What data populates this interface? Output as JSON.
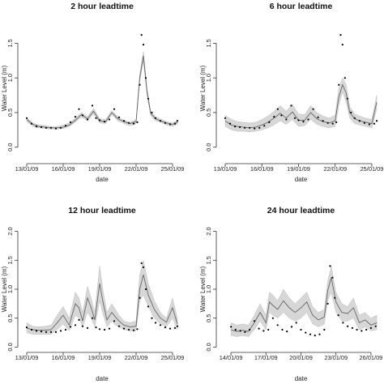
{
  "chart_data": [
    {
      "type": "line",
      "title": "2 hour leadtime",
      "xlabel": "date",
      "ylabel": "Water Level (m)",
      "x_tick_labels": [
        "13/01/09",
        "16/01/09",
        "19/01/09",
        "22/01/09",
        "25/01/09"
      ],
      "x_tick_day": [
        13,
        16,
        19,
        22,
        25
      ],
      "x_range": [
        12.8,
        25.6
      ],
      "ylim": [
        -0.05,
        1.75
      ],
      "y_ticks": [
        "0.0",
        "0.5",
        "1.0",
        "1.5"
      ],
      "series": [
        {
          "style": "band",
          "x": [
            13,
            13.5,
            14,
            14.5,
            15,
            15.5,
            16,
            16.5,
            17,
            17.5,
            18,
            18.5,
            19,
            19.5,
            20,
            20.5,
            21,
            21.5,
            22,
            22.3,
            22.6,
            22.9,
            23.2,
            23.6,
            24,
            24.5,
            25,
            25.4
          ],
          "lower": [
            0.37,
            0.3,
            0.28,
            0.27,
            0.26,
            0.26,
            0.27,
            0.3,
            0.36,
            0.44,
            0.38,
            0.48,
            0.35,
            0.34,
            0.47,
            0.38,
            0.34,
            0.31,
            0.34,
            0.95,
            1.25,
            0.75,
            0.46,
            0.38,
            0.36,
            0.32,
            0.3,
            0.33
          ],
          "upper": [
            0.43,
            0.35,
            0.32,
            0.31,
            0.3,
            0.3,
            0.32,
            0.35,
            0.42,
            0.5,
            0.44,
            0.56,
            0.41,
            0.4,
            0.53,
            0.44,
            0.39,
            0.36,
            0.4,
            1.05,
            1.38,
            0.85,
            0.52,
            0.44,
            0.41,
            0.37,
            0.35,
            0.39
          ]
        },
        {
          "style": "line",
          "x": [
            13,
            13.5,
            14,
            14.5,
            15,
            15.5,
            16,
            16.5,
            17,
            17.5,
            18,
            18.5,
            19,
            19.5,
            20,
            20.5,
            21,
            21.5,
            22,
            22.3,
            22.6,
            22.9,
            23.2,
            23.6,
            24,
            24.5,
            25,
            25.4
          ],
          "values": [
            0.4,
            0.33,
            0.3,
            0.29,
            0.28,
            0.28,
            0.29,
            0.32,
            0.39,
            0.47,
            0.41,
            0.52,
            0.38,
            0.37,
            0.5,
            0.41,
            0.37,
            0.34,
            0.37,
            1.0,
            1.32,
            0.8,
            0.49,
            0.41,
            0.38,
            0.35,
            0.33,
            0.36
          ]
        },
        {
          "style": "points",
          "x": [
            13,
            13.4,
            13.8,
            14.2,
            14.6,
            15,
            15.4,
            15.8,
            16.2,
            16.6,
            17,
            17.3,
            17.6,
            18,
            18.4,
            18.7,
            19,
            19.4,
            19.8,
            20.2,
            20.6,
            21,
            21.4,
            21.8,
            22.1,
            22.3,
            22.45,
            22.6,
            22.8,
            23,
            23.3,
            23.6,
            24,
            24.4,
            24.8,
            25.2,
            25.4
          ],
          "values": [
            0.42,
            0.34,
            0.3,
            0.29,
            0.28,
            0.28,
            0.27,
            0.28,
            0.31,
            0.36,
            0.44,
            0.55,
            0.46,
            0.4,
            0.6,
            0.42,
            0.39,
            0.37,
            0.4,
            0.55,
            0.43,
            0.38,
            0.35,
            0.34,
            0.36,
            0.9,
            1.62,
            1.48,
            1.0,
            0.7,
            0.5,
            0.42,
            0.38,
            0.35,
            0.33,
            0.34,
            0.38
          ]
        }
      ]
    },
    {
      "type": "line",
      "title": "6 hour leadtime",
      "xlabel": "date",
      "ylabel": "Water Level (m)",
      "x_tick_labels": [
        "13/01/09",
        "16/01/09",
        "19/01/09",
        "22/01/09",
        "25/01/09"
      ],
      "x_tick_day": [
        13,
        16,
        19,
        22,
        25
      ],
      "x_range": [
        12.8,
        25.6
      ],
      "ylim": [
        -0.05,
        1.75
      ],
      "y_ticks": [
        "0.0",
        "0.5",
        "1.0",
        "1.5"
      ],
      "series": [
        {
          "style": "band",
          "x": [
            13,
            13.5,
            14,
            14.5,
            15,
            15.5,
            16,
            16.5,
            17,
            17.5,
            18,
            18.5,
            19,
            19.5,
            20,
            20.5,
            21,
            21.5,
            22,
            22.3,
            22.6,
            22.9,
            23.2,
            23.6,
            24,
            24.5,
            25,
            25.4
          ],
          "lower": [
            0.3,
            0.25,
            0.23,
            0.23,
            0.22,
            0.23,
            0.25,
            0.28,
            0.32,
            0.38,
            0.33,
            0.4,
            0.3,
            0.31,
            0.4,
            0.33,
            0.3,
            0.28,
            0.3,
            0.6,
            0.8,
            0.65,
            0.42,
            0.34,
            0.32,
            0.3,
            0.28,
            0.55
          ],
          "upper": [
            0.46,
            0.4,
            0.37,
            0.36,
            0.35,
            0.36,
            0.4,
            0.45,
            0.52,
            0.6,
            0.52,
            0.62,
            0.48,
            0.47,
            0.6,
            0.5,
            0.45,
            0.42,
            0.46,
            0.85,
            1.0,
            0.9,
            0.58,
            0.48,
            0.45,
            0.42,
            0.4,
            0.75
          ]
        },
        {
          "style": "line",
          "x": [
            13,
            13.5,
            14,
            14.5,
            15,
            15.5,
            16,
            16.5,
            17,
            17.5,
            18,
            18.5,
            19,
            19.5,
            20,
            20.5,
            21,
            21.5,
            22,
            22.3,
            22.6,
            22.9,
            23.2,
            23.6,
            24,
            24.5,
            25,
            25.4
          ],
          "values": [
            0.38,
            0.32,
            0.3,
            0.29,
            0.28,
            0.29,
            0.32,
            0.36,
            0.42,
            0.49,
            0.42,
            0.51,
            0.39,
            0.39,
            0.5,
            0.41,
            0.37,
            0.35,
            0.38,
            0.72,
            0.9,
            0.78,
            0.5,
            0.41,
            0.38,
            0.36,
            0.34,
            0.65
          ]
        },
        {
          "style": "points",
          "x": [
            13,
            13.4,
            13.8,
            14.2,
            14.6,
            15,
            15.4,
            15.8,
            16.2,
            16.6,
            17,
            17.3,
            17.6,
            18,
            18.4,
            18.7,
            19,
            19.4,
            19.8,
            20.2,
            20.6,
            21,
            21.4,
            21.8,
            22.1,
            22.3,
            22.45,
            22.6,
            22.8,
            23,
            23.3,
            23.6,
            24,
            24.4,
            24.8,
            25.2,
            25.4
          ],
          "values": [
            0.42,
            0.34,
            0.3,
            0.29,
            0.28,
            0.28,
            0.27,
            0.28,
            0.31,
            0.36,
            0.44,
            0.55,
            0.46,
            0.4,
            0.6,
            0.42,
            0.39,
            0.37,
            0.4,
            0.55,
            0.43,
            0.38,
            0.35,
            0.34,
            0.36,
            0.9,
            1.62,
            1.48,
            1.0,
            0.7,
            0.5,
            0.42,
            0.38,
            0.35,
            0.33,
            0.34,
            0.38
          ]
        }
      ]
    },
    {
      "type": "line",
      "title": "12 hour leadtime",
      "xlabel": "date",
      "ylabel": "Water Level (m)",
      "x_tick_labels": [
        "13/01/09",
        "16/01/09",
        "19/01/09",
        "22/01/09",
        "25/01/09"
      ],
      "x_tick_day": [
        13,
        16,
        19,
        22,
        25
      ],
      "x_range": [
        12.8,
        25.6
      ],
      "ylim": [
        -0.05,
        2.05
      ],
      "y_ticks": [
        "0.0",
        "0.5",
        "1.0",
        "1.5",
        "2.0"
      ],
      "series": [
        {
          "style": "band",
          "x": [
            13,
            13.5,
            14,
            14.5,
            15,
            15.5,
            16,
            16.5,
            17,
            17.3,
            17.6,
            18,
            18.3,
            18.6,
            19,
            19.3,
            19.6,
            20,
            20.3,
            20.6,
            21,
            21.5,
            22,
            22.3,
            22.6,
            23,
            23.5,
            24,
            24.5,
            25,
            25.4
          ],
          "lower": [
            0.25,
            0.22,
            0.22,
            0.22,
            0.22,
            0.3,
            0.4,
            0.28,
            0.55,
            0.5,
            0.35,
            0.6,
            0.5,
            0.35,
            0.8,
            0.55,
            0.35,
            0.45,
            0.38,
            0.35,
            0.3,
            0.28,
            0.28,
            0.8,
            0.9,
            0.7,
            0.5,
            0.4,
            0.35,
            0.5,
            0.3
          ],
          "upper": [
            0.42,
            0.36,
            0.35,
            0.36,
            0.38,
            0.55,
            0.7,
            0.5,
            0.95,
            0.85,
            0.6,
            1.05,
            0.85,
            0.6,
            1.4,
            0.95,
            0.6,
            0.75,
            0.65,
            0.55,
            0.45,
            0.42,
            0.45,
            1.25,
            1.5,
            1.1,
            0.8,
            0.6,
            0.5,
            0.85,
            0.5
          ]
        },
        {
          "style": "line",
          "x": [
            13,
            13.5,
            14,
            14.5,
            15,
            15.5,
            16,
            16.5,
            17,
            17.3,
            17.6,
            18,
            18.3,
            18.6,
            19,
            19.3,
            19.6,
            20,
            20.3,
            20.6,
            21,
            21.5,
            22,
            22.3,
            22.6,
            23,
            23.5,
            24,
            24.5,
            25,
            25.4
          ],
          "values": [
            0.33,
            0.3,
            0.29,
            0.29,
            0.3,
            0.42,
            0.55,
            0.38,
            0.75,
            0.68,
            0.45,
            0.85,
            0.68,
            0.47,
            1.1,
            0.75,
            0.47,
            0.6,
            0.52,
            0.45,
            0.38,
            0.35,
            0.36,
            1.0,
            1.25,
            0.9,
            0.65,
            0.5,
            0.43,
            0.68,
            0.4
          ]
        },
        {
          "style": "points",
          "x": [
            13,
            13.4,
            13.8,
            14.2,
            14.6,
            15,
            15.4,
            15.8,
            16.2,
            16.6,
            17,
            17.3,
            17.6,
            18,
            18.4,
            18.7,
            19,
            19.4,
            19.8,
            20.2,
            20.6,
            21,
            21.4,
            21.8,
            22.1,
            22.3,
            22.45,
            22.6,
            22.8,
            23,
            23.3,
            23.6,
            24,
            24.4,
            24.8,
            25.2,
            25.4
          ],
          "values": [
            0.34,
            0.3,
            0.28,
            0.27,
            0.26,
            0.26,
            0.26,
            0.28,
            0.3,
            0.35,
            0.38,
            0.47,
            0.36,
            0.33,
            0.5,
            0.34,
            0.31,
            0.3,
            0.32,
            0.45,
            0.36,
            0.32,
            0.3,
            0.29,
            0.31,
            0.85,
            1.45,
            1.38,
            1.0,
            0.7,
            0.5,
            0.42,
            0.38,
            0.34,
            0.32,
            0.33,
            0.36
          ]
        }
      ]
    },
    {
      "type": "line",
      "title": "24 hour leadtime",
      "xlabel": "date",
      "ylabel": "Water Level (m)",
      "x_tick_labels": [
        "14/01/09",
        "17/01/09",
        "20/01/09",
        "23/01/09",
        "26/01/09"
      ],
      "x_tick_day": [
        14,
        17,
        20,
        23,
        26
      ],
      "x_range": [
        13.3,
        26.7
      ],
      "ylim": [
        -0.05,
        2.05
      ],
      "y_ticks": [
        "0.0",
        "0.5",
        "1.0",
        "1.5",
        "2.0"
      ],
      "series": [
        {
          "style": "band",
          "x": [
            14,
            14.5,
            15,
            15.5,
            16,
            16.5,
            17,
            17.3,
            17.6,
            18,
            18.5,
            19,
            19.5,
            20,
            20.5,
            21,
            21.5,
            22,
            22.3,
            22.6,
            23,
            23.5,
            24,
            24.5,
            25,
            25.5,
            26,
            26.5
          ],
          "lower": [
            0.2,
            0.18,
            0.2,
            0.18,
            0.3,
            0.45,
            0.3,
            0.6,
            0.55,
            0.5,
            0.6,
            0.5,
            0.45,
            0.5,
            0.6,
            0.4,
            0.35,
            0.4,
            0.8,
            0.95,
            0.6,
            0.45,
            0.45,
            0.5,
            0.3,
            0.35,
            0.28,
            0.3
          ],
          "upper": [
            0.42,
            0.38,
            0.4,
            0.38,
            0.55,
            0.75,
            0.55,
            0.95,
            0.9,
            0.8,
            1.0,
            0.85,
            0.75,
            0.85,
            0.95,
            0.7,
            0.6,
            0.65,
            1.15,
            1.4,
            0.95,
            0.75,
            0.7,
            0.85,
            0.55,
            0.6,
            0.5,
            0.55
          ]
        },
        {
          "style": "line",
          "x": [
            14,
            14.5,
            15,
            15.5,
            16,
            16.5,
            17,
            17.3,
            17.6,
            18,
            18.5,
            19,
            19.5,
            20,
            20.5,
            21,
            21.5,
            22,
            22.3,
            22.6,
            23,
            23.5,
            24,
            24.5,
            25,
            25.5,
            26,
            26.5
          ],
          "values": [
            0.3,
            0.27,
            0.29,
            0.27,
            0.42,
            0.6,
            0.42,
            0.78,
            0.72,
            0.65,
            0.8,
            0.68,
            0.6,
            0.68,
            0.78,
            0.55,
            0.47,
            0.52,
            0.98,
            1.2,
            0.78,
            0.6,
            0.58,
            0.68,
            0.42,
            0.47,
            0.38,
            0.42
          ]
        },
        {
          "style": "points",
          "x": [
            14,
            14.4,
            14.8,
            15.2,
            15.6,
            16,
            16.4,
            16.8,
            17.2,
            17.6,
            18,
            18.4,
            18.8,
            19.2,
            19.6,
            20,
            20.4,
            20.8,
            21.2,
            21.6,
            22,
            22.3,
            22.5,
            22.7,
            22.9,
            23.2,
            23.6,
            24,
            24.4,
            24.8,
            25.2,
            25.6,
            26,
            26.4
          ],
          "values": [
            0.35,
            0.3,
            0.28,
            0.26,
            0.3,
            0.45,
            0.32,
            0.28,
            0.3,
            0.5,
            0.38,
            0.3,
            0.27,
            0.35,
            0.42,
            0.3,
            0.25,
            0.22,
            0.2,
            0.22,
            0.3,
            0.75,
            1.4,
            1.2,
            0.85,
            0.55,
            0.42,
            0.36,
            0.33,
            0.3,
            0.28,
            0.3,
            0.33,
            0.36
          ]
        }
      ]
    }
  ]
}
